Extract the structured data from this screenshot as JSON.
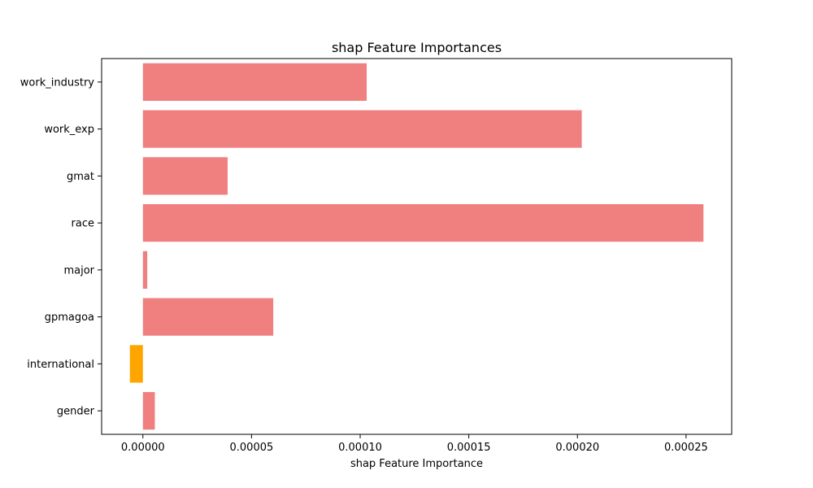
{
  "chart_data": {
    "type": "bar",
    "orientation": "horizontal",
    "title": "shap Feature Importances",
    "xlabel": "shap Feature Importance",
    "ylabel": "",
    "categories": [
      "work_industry",
      "work_exp",
      "gmat",
      "race",
      "major",
      "gpmagoa",
      "international",
      "gender"
    ],
    "values": [
      0.000103,
      0.000202,
      3.9e-05,
      0.000258,
      2e-06,
      6e-05,
      -6e-06,
      5.5e-06
    ],
    "xlim": [
      -1.9e-05,
      0.000271
    ],
    "xticks": [
      0,
      5e-05,
      0.0001,
      0.00015,
      0.0002,
      0.00025
    ],
    "xtick_labels": [
      "0.00000",
      "0.00005",
      "0.00010",
      "0.00015",
      "0.00020",
      "0.00025"
    ],
    "grid": false,
    "colors": {
      "positive": "#F08080",
      "negative": "#FFA500",
      "axis": "#000000"
    }
  }
}
